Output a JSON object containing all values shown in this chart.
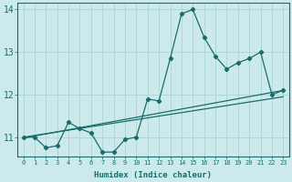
{
  "xlabel": "Humidex (Indice chaleur)",
  "background_color": "#cceaec",
  "grid_color": "#b0d8db",
  "line_color": "#1a6b6b",
  "xlim": [
    -0.5,
    23.5
  ],
  "ylim": [
    10.55,
    14.15
  ],
  "yticks": [
    11,
    12,
    13,
    14
  ],
  "xticks": [
    0,
    1,
    2,
    3,
    4,
    5,
    6,
    7,
    8,
    9,
    10,
    11,
    12,
    13,
    14,
    15,
    16,
    17,
    18,
    19,
    20,
    21,
    22,
    23
  ],
  "x": [
    0,
    1,
    2,
    3,
    4,
    5,
    6,
    7,
    8,
    9,
    10,
    11,
    12,
    13,
    14,
    15,
    16,
    17,
    18,
    19,
    20,
    21,
    22,
    23
  ],
  "y_main": [
    11.0,
    11.0,
    10.75,
    10.8,
    11.35,
    11.2,
    11.1,
    10.65,
    10.65,
    10.95,
    11.0,
    11.9,
    11.85,
    12.85,
    13.9,
    14.0,
    13.35,
    12.9,
    12.6,
    12.75,
    12.85,
    13.0,
    12.0,
    12.1
  ],
  "trend1_x0": 0,
  "trend1_y0": 10.98,
  "trend1_x1": 23,
  "trend1_y1": 12.1,
  "trend2_x0": 0,
  "trend2_y0": 11.0,
  "trend2_x1": 23,
  "trend2_y1": 11.95
}
